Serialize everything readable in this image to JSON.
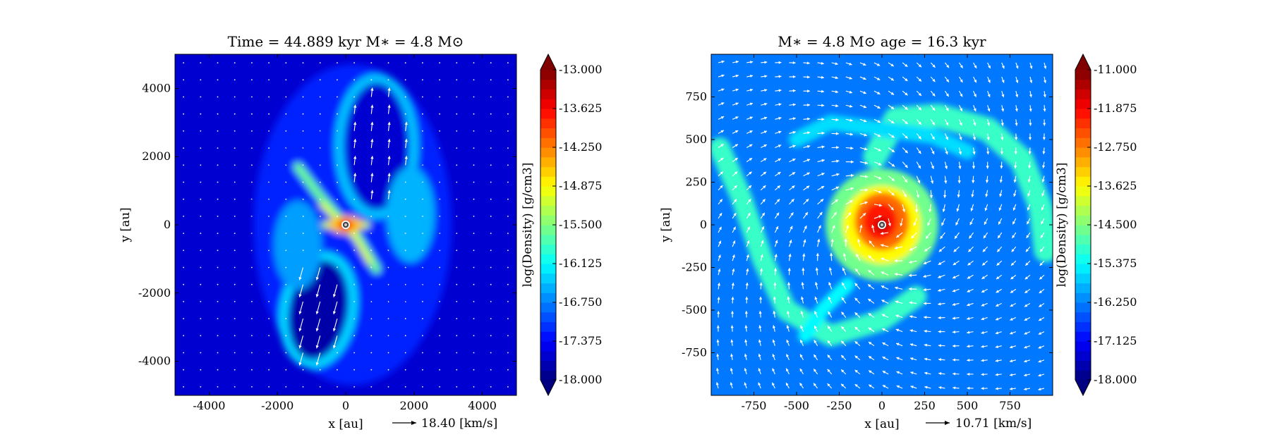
{
  "chart_data": [
    {
      "type": "heatmap",
      "title": "Time = 44.889 kyr    M$_*$ = 4.8 M$_\\odot$",
      "title_display": "Time = 44.889 kyr    M∗ = 4.8 M⊙",
      "xlabel": "x [au]",
      "ylabel": "y [au]",
      "xlim": [
        -5000,
        5000
      ],
      "ylim": [
        -5000,
        5000
      ],
      "xticks": [
        -4000,
        -2000,
        0,
        2000,
        4000
      ],
      "yticks": [
        -4000,
        -2000,
        0,
        2000,
        4000
      ],
      "xtick_labels": [
        "-4000",
        "-2000",
        "0",
        "2000",
        "4000"
      ],
      "ytick_labels": [
        "-4000",
        "-2000",
        "0",
        "2000",
        "4000"
      ],
      "colorbar": {
        "label": "log(Density) [g/cm3]",
        "range": [
          -18.0,
          -13.0
        ],
        "ticks": [
          "-13.000",
          "-13.625",
          "-14.250",
          "-14.875",
          "-15.500",
          "-16.125",
          "-16.750",
          "-17.375",
          "-18.000"
        ],
        "colormap": "jet",
        "extend": "both"
      },
      "quiver_key": {
        "text": "18.40 [km/s]",
        "value": 18.4,
        "unit": "km/s"
      },
      "features": {
        "background_log_density": -17.6,
        "central_star": [
          0,
          0
        ],
        "bipolar_lobes": "bipolar outflow lobes along y-axis extending to ~+4300 au and ~-4000 au",
        "filaments": "dense diagonal filament through the star from upper-left to lower-right"
      }
    },
    {
      "type": "heatmap",
      "title": "M$_*$ = 4.8 M$_\\odot$        age = 16.3 kyr",
      "title_display": "M∗ = 4.8 M⊙          age = 16.3 kyr",
      "xlabel": "x [au]",
      "ylabel": "y [au]",
      "xlim": [
        -1000,
        1000
      ],
      "ylim": [
        -1000,
        1000
      ],
      "xticks": [
        -750,
        -500,
        -250,
        0,
        250,
        500,
        750
      ],
      "yticks": [
        -750,
        -500,
        -250,
        0,
        250,
        500,
        750
      ],
      "xtick_labels": [
        "-750",
        "-500",
        "-250",
        "0",
        "250",
        "500",
        "750"
      ],
      "ytick_labels": [
        "-750",
        "-500",
        "-250",
        "0",
        "250",
        "500",
        "750"
      ],
      "colorbar": {
        "label": "log(Density) [g/cm3]",
        "range": [
          -18.0,
          -11.0
        ],
        "ticks": [
          "-11.000",
          "-11.875",
          "-12.750",
          "-13.625",
          "-14.500",
          "-15.375",
          "-16.250",
          "-17.125",
          "-18.000"
        ],
        "colormap": "jet",
        "extend": "both"
      },
      "quiver_key": {
        "text": "10.71 [km/s]",
        "value": 10.71,
        "unit": "km/s"
      },
      "features": {
        "background_log_density": -16.3,
        "central_star": [
          0,
          0
        ],
        "disk": "dense disk of radius ~200 au around the star, log density up to ~-11.5",
        "spiral_arms": "two spiral arms extending to ~900 au"
      }
    }
  ]
}
